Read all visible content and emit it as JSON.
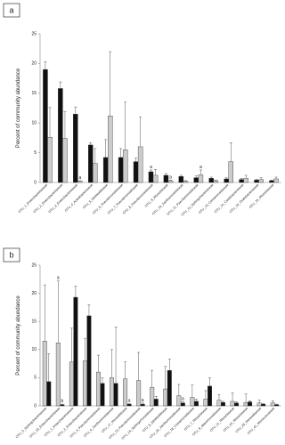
{
  "chart_data": [
    {
      "type": "bar",
      "panel_label": "a",
      "y_label": "Percent of community abundance",
      "categories": [
        "OTU_1_Enterobacteriaceae",
        "OTU_2_Enterobacteriaceae",
        "OTU_3_Enterobacteriaceae",
        "OTU_4_Acetobacteraceae",
        "OTU_5_Weeksellaceae",
        "OTU_6_Pseudomonadaceae",
        "OTU_7_Pseudomonadaceae",
        "OTU_8_Pseudomonadaceae",
        "OTU_9_Rhizobiaceae",
        "OTU_10_Xanthomonadaceae",
        "OTU_11_Pseudomonadaceae",
        "OTU_12_Sphingobacteriaceae",
        "OTU_13_Comamonadaceae",
        "OTU_14_Caulobacteraceae",
        "OTU_15_Oxalobacteraceae",
        "OTU_16_Rhizobiaceae"
      ],
      "series": [
        {
          "color": "#111111",
          "values": [
            19,
            15.8,
            11.5,
            6.3,
            4.2,
            4.2,
            3.5,
            1.8,
            1.2,
            1.0,
            0.8,
            0.7,
            0.6,
            0.5,
            0.4,
            0.3
          ],
          "errors": [
            1.3,
            1.1,
            1.2,
            0.4,
            3,
            1.5,
            0.6,
            0.3,
            0.3,
            0.2,
            0.3,
            0.2,
            0.2,
            0.2,
            0.1,
            0.1
          ],
          "labels": [
            null,
            null,
            null,
            null,
            null,
            null,
            null,
            "a",
            null,
            null,
            null,
            null,
            null,
            null,
            null,
            null
          ]
        },
        {
          "color": "#cccccc",
          "values": [
            7.6,
            7.4,
            0.2,
            3.2,
            11.2,
            5.5,
            6,
            1.2,
            0.3,
            0.2,
            1.3,
            0.3,
            3.5,
            0.7,
            0.5,
            0.6
          ],
          "errors": [
            5,
            4.5,
            0.1,
            2.5,
            10.8,
            8,
            5,
            1,
            0.1,
            0.1,
            0.8,
            0.1,
            3.2,
            0.5,
            0.3,
            0.3
          ],
          "labels": [
            null,
            null,
            "a",
            null,
            null,
            null,
            null,
            null,
            "a",
            null,
            "a",
            null,
            null,
            null,
            null,
            null
          ]
        }
      ],
      "ylim": [
        0,
        25
      ],
      "yticks": [
        0,
        5,
        10,
        15,
        20,
        25
      ]
    },
    {
      "type": "bar",
      "panel_label": "b",
      "y_label": "Percent of community abundance",
      "categories": [
        "OTU_3_Sphingobacteriaceae",
        "OTU_10_Enterobacteriaceae",
        "OTU_1_Enterobacteriaceae",
        "OTU_2_Enterobacteriaceae",
        "OTU_4_Pseudomonadaceae",
        "OTU_6_Xanthomonadaceae",
        "OTU_17_Moraxellaceae",
        "OTU_13_Pseudomonadaceae",
        "OTU_14_Sphingomonadaceae",
        "OTU_5_Weeksellaceae",
        "OTU_22_Xanthomonadaceae",
        "OTU_18_Comamonadaceae",
        "OTU_7_Rhizobiaceae",
        "OTU_9_Alteromonadaceae",
        "OTU_11_Rhizobiaceae",
        "OTU_24_Rhizobiaceae",
        "OTU_20_Moraxellaceae",
        "OTU_41_Micrococcaceae"
      ],
      "series": [
        {
          "color": "#cccccc",
          "values": [
            11.5,
            11.2,
            7.8,
            8,
            6,
            5,
            4.8,
            4.5,
            3.3,
            3,
            1.8,
            1.5,
            1.2,
            1.0,
            0.8,
            0.6,
            0.5,
            0.5
          ],
          "errors": [
            10,
            11,
            6,
            4,
            3,
            5,
            3,
            5,
            3,
            4,
            2,
            2.2,
            1.5,
            1,
            1.5,
            1.5,
            0.5,
            0.4
          ],
          "labels": [
            null,
            "a",
            null,
            null,
            null,
            null,
            null,
            null,
            null,
            null,
            null,
            null,
            null,
            null,
            null,
            null,
            null,
            null
          ]
        },
        {
          "color": "#111111",
          "values": [
            4.3,
            0.2,
            19.3,
            16,
            4,
            4,
            0.3,
            0.3,
            1.2,
            6.3,
            0.5,
            0.8,
            3.5,
            0.6,
            0.5,
            0.7,
            0.3,
            0.2
          ],
          "errors": [
            5,
            0.1,
            2,
            2,
            1,
            10,
            0.1,
            0.2,
            0.5,
            2,
            0.2,
            0.4,
            1.5,
            0.2,
            0.2,
            0.2,
            0.1,
            0.1
          ],
          "labels": [
            null,
            "b",
            null,
            null,
            null,
            null,
            "a",
            "a",
            null,
            null,
            "a",
            null,
            null,
            null,
            null,
            null,
            null,
            null
          ]
        }
      ],
      "ylim": [
        0,
        25
      ],
      "yticks": [
        0,
        5,
        10,
        15,
        20,
        25
      ]
    }
  ]
}
